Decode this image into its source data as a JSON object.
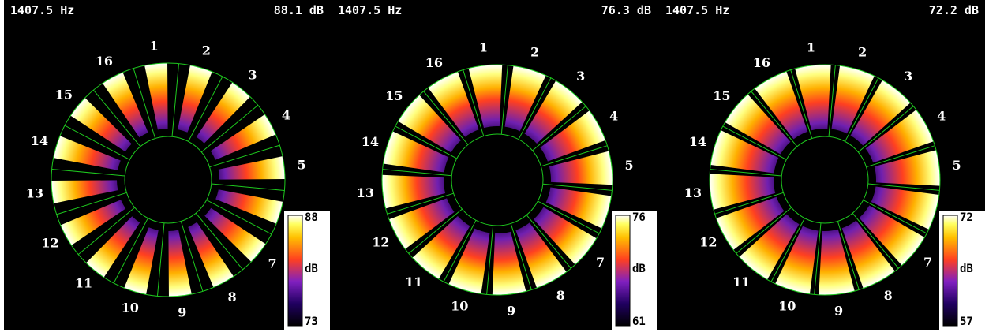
{
  "panels": [
    {
      "frequency": "1407.5 Hz",
      "level": "88.1 dB",
      "colorbar": {
        "max": "88",
        "unit": "dB",
        "min": "73"
      },
      "sector_labels": [
        "1",
        "2",
        "3",
        "4",
        "5",
        "6",
        "7",
        "8",
        "9",
        "10",
        "11",
        "12",
        "13",
        "14",
        "15",
        "16"
      ]
    },
    {
      "frequency": "1407.5 Hz",
      "level": "76.3 dB",
      "colorbar": {
        "max": "76",
        "unit": "dB",
        "min": "61"
      },
      "sector_labels": [
        "1",
        "2",
        "3",
        "4",
        "5",
        "6",
        "7",
        "8",
        "9",
        "10",
        "11",
        "12",
        "13",
        "14",
        "15",
        "16"
      ]
    },
    {
      "frequency": "1407.5 Hz",
      "level": "72.2 dB",
      "colorbar": {
        "max": "72",
        "unit": "dB",
        "min": "57"
      },
      "sector_labels": [
        "1",
        "2",
        "3",
        "4",
        "5",
        "6",
        "7",
        "8",
        "9",
        "10",
        "11",
        "12",
        "13",
        "14",
        "15",
        "16"
      ]
    }
  ]
}
